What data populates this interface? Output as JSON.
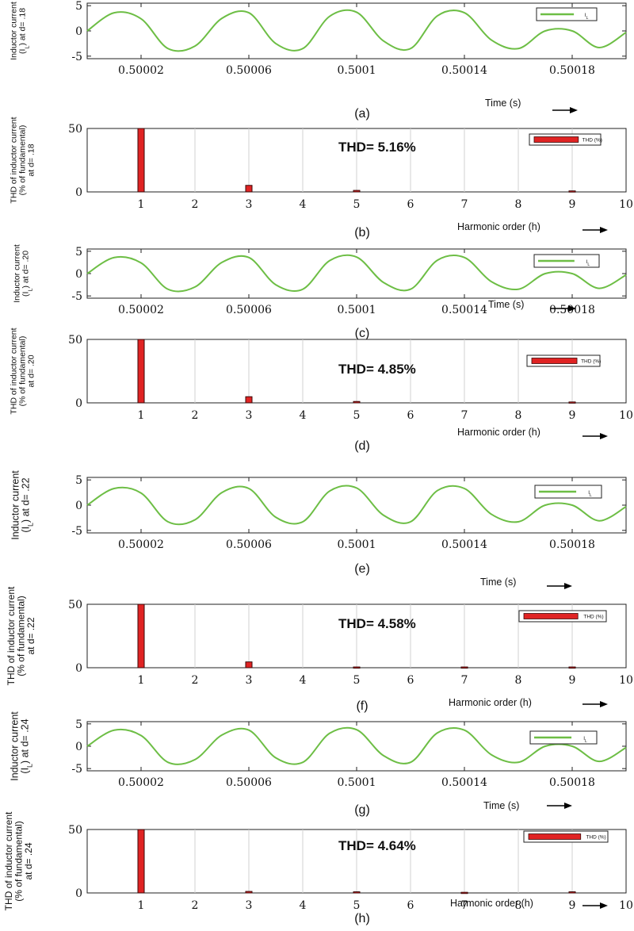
{
  "colors": {
    "line": "#6dbe45",
    "bar": "#e02323",
    "bar_edge": "#3a0a0a",
    "grid": "#d0d0d0",
    "axis": "#222222"
  },
  "panels": [
    {
      "id": "a",
      "kind": "time",
      "panel_label": "(a)",
      "ylabel": [
        "Inductor current",
        "(I",
        "L",
        ") at d= .18"
      ],
      "xlabel": "Time (s)",
      "legend": "I",
      "legend_sub": "L"
    },
    {
      "id": "b",
      "kind": "thd",
      "panel_label": "(b)",
      "ylabel": [
        "THD of inductor current",
        "(% of fundamental)",
        "at d= .18"
      ],
      "xlabel": "Harmonic order (h)",
      "annotation": "THD= 5.16%",
      "legend": "THD (%)"
    },
    {
      "id": "c",
      "kind": "time",
      "panel_label": "(c)",
      "ylabel": [
        "Inductor current",
        "(I",
        "L",
        ") at d= .20"
      ],
      "xlabel": "Time (s)",
      "legend": "I",
      "legend_sub": "L"
    },
    {
      "id": "d",
      "kind": "thd",
      "panel_label": "(d)",
      "ylabel": [
        "THD of inductor current",
        "(% of fundamental)",
        "at d= .20"
      ],
      "xlabel": "Harmonic order (h)",
      "annotation": "THD= 4.85%",
      "legend": "THD (%)"
    },
    {
      "id": "e",
      "kind": "time",
      "panel_label": "(e)",
      "ylabel": [
        "Inductor current",
        "(I",
        "L",
        ") at d= .22"
      ],
      "xlabel": "Time (s)",
      "legend": "I",
      "legend_sub": "L"
    },
    {
      "id": "f",
      "kind": "thd",
      "panel_label": "(f)",
      "ylabel": [
        "THD of inductor current",
        "(% of fundamental)",
        "at d= .22"
      ],
      "xlabel": "Harmonic order (h)",
      "annotation": "THD= 4.58%",
      "legend": "THD (%)"
    },
    {
      "id": "g",
      "kind": "time",
      "panel_label": "(g)",
      "ylabel": [
        "Inductor current",
        "(I",
        "L",
        ") at d= .24"
      ],
      "xlabel": "Time (s)",
      "legend": "I",
      "legend_sub": "L"
    },
    {
      "id": "h",
      "kind": "thd",
      "panel_label": "(h)",
      "ylabel": [
        "THD of inductor current",
        "(% of fundamental)",
        "at d= .24"
      ],
      "xlabel": "Harmonic order (h)",
      "annotation": "THD= 4.64%",
      "legend": "THD (%)"
    }
  ],
  "chart_data": [
    {
      "type": "line",
      "panel": "a",
      "x": [
        0.5,
        0.50001,
        0.50002,
        0.50003,
        0.50004,
        0.50005,
        0.50006,
        0.50007,
        0.50008,
        0.50009,
        0.5001,
        0.50011,
        0.50012,
        0.50013,
        0.50014,
        0.50015,
        0.50016,
        0.50017,
        0.50018,
        0.50019,
        0.5002
      ],
      "series": [
        {
          "values": [
            0,
            3.6,
            2.4,
            -3.5,
            -3.0,
            2.5,
            3.6,
            -2.5,
            -3.5,
            2.9,
            3.7,
            -2.0,
            -3.5,
            3.0,
            3.6,
            -1.8,
            -3.5,
            0.0,
            0.0,
            -3.3,
            -0.3
          ]
        }
      ],
      "yticks": [
        -5,
        0,
        5
      ],
      "ylim": [
        -5.5,
        5.5
      ],
      "xticks": [
        "0.50002",
        "0.50006",
        "0.5001",
        "0.50014",
        "0.50018"
      ],
      "xlim": [
        0.5,
        0.5002
      ]
    },
    {
      "type": "bar",
      "panel": "b",
      "categories": [
        1,
        2,
        3,
        4,
        5,
        6,
        7,
        8,
        9,
        10
      ],
      "values": [
        50,
        0,
        5.16,
        0,
        1.2,
        0,
        0,
        0,
        0.8,
        0
      ],
      "yticks": [
        0,
        50
      ],
      "ylim": [
        0,
        50
      ],
      "xlim": [
        0,
        10
      ]
    },
    {
      "type": "line",
      "panel": "c",
      "x": [
        0.5,
        0.50001,
        0.50002,
        0.50003,
        0.50004,
        0.50005,
        0.50006,
        0.50007,
        0.50008,
        0.50009,
        0.5001,
        0.50011,
        0.50012,
        0.50013,
        0.50014,
        0.50015,
        0.50016,
        0.50017,
        0.50018,
        0.50019,
        0.5002
      ],
      "series": [
        {
          "values": [
            0,
            3.6,
            2.4,
            -3.5,
            -3.0,
            2.5,
            3.6,
            -2.5,
            -3.5,
            2.9,
            3.7,
            -2.0,
            -3.5,
            3.0,
            3.6,
            -1.8,
            -3.5,
            0.0,
            0.0,
            -3.3,
            -0.3
          ]
        }
      ],
      "yticks": [
        -5,
        0,
        5
      ],
      "ylim": [
        -5.5,
        5.5
      ],
      "xticks": [
        "0.50002",
        "0.50006",
        "0.5001",
        "0.50014",
        "0.50018"
      ],
      "xlim": [
        0.5,
        0.5002
      ]
    },
    {
      "type": "bar",
      "panel": "d",
      "categories": [
        1,
        2,
        3,
        4,
        5,
        6,
        7,
        8,
        9,
        10
      ],
      "values": [
        50,
        0,
        4.85,
        0,
        1.1,
        0,
        0,
        0,
        0.7,
        0
      ],
      "yticks": [
        0,
        50
      ],
      "ylim": [
        0,
        50
      ],
      "xlim": [
        0,
        10
      ]
    },
    {
      "type": "line",
      "panel": "e",
      "x": [
        0.5,
        0.50001,
        0.50002,
        0.50003,
        0.50004,
        0.50005,
        0.50006,
        0.50007,
        0.50008,
        0.50009,
        0.5001,
        0.50011,
        0.50012,
        0.50013,
        0.50014,
        0.50015,
        0.50016,
        0.50017,
        0.50018,
        0.50019,
        0.5002
      ],
      "series": [
        {
          "values": [
            0,
            3.3,
            2.4,
            -3.3,
            -2.9,
            2.5,
            3.3,
            -2.4,
            -3.3,
            2.8,
            3.4,
            -2.0,
            -3.3,
            2.9,
            3.3,
            -1.8,
            -3.3,
            0.0,
            0.0,
            -3.1,
            -0.3
          ]
        }
      ],
      "yticks": [
        -5,
        0,
        5
      ],
      "ylim": [
        -5.5,
        5.5
      ],
      "xticks": [
        "0.50002",
        "0.50006",
        "0.5001",
        "0.50014",
        "0.50018"
      ],
      "xlim": [
        0.5,
        0.5002
      ]
    },
    {
      "type": "bar",
      "panel": "f",
      "categories": [
        1,
        2,
        3,
        4,
        5,
        6,
        7,
        8,
        9,
        10
      ],
      "values": [
        50,
        0,
        4.58,
        0,
        0.6,
        0,
        0.6,
        0,
        0.6,
        0
      ],
      "yticks": [
        0,
        50
      ],
      "ylim": [
        0,
        50
      ],
      "xlim": [
        0,
        10
      ]
    },
    {
      "type": "line",
      "panel": "g",
      "x": [
        0.5,
        0.50001,
        0.50002,
        0.50003,
        0.50004,
        0.50005,
        0.50006,
        0.50007,
        0.50008,
        0.50009,
        0.5001,
        0.50011,
        0.50012,
        0.50013,
        0.50014,
        0.50015,
        0.50016,
        0.50017,
        0.50018,
        0.50019,
        0.5002
      ],
      "series": [
        {
          "values": [
            0,
            3.6,
            2.4,
            -3.6,
            -3.0,
            2.5,
            3.6,
            -2.6,
            -3.6,
            2.9,
            3.7,
            -2.1,
            -3.6,
            3.0,
            3.6,
            -1.9,
            -3.6,
            0.0,
            0.0,
            -3.4,
            -0.3
          ]
        }
      ],
      "yticks": [
        -5,
        0,
        5
      ],
      "ylim": [
        -5.5,
        5.5
      ],
      "xticks": [
        "0.50002",
        "0.50006",
        "0.5001",
        "0.50014",
        "0.50018"
      ],
      "xlim": [
        0.5,
        0.5002
      ]
    },
    {
      "type": "bar",
      "panel": "h",
      "categories": [
        1,
        2,
        3,
        4,
        5,
        6,
        7,
        8,
        9,
        10
      ],
      "values": [
        50,
        0,
        1.2,
        0,
        0.9,
        0,
        0.5,
        0,
        0.9,
        0
      ],
      "yticks": [
        0,
        50
      ],
      "ylim": [
        0,
        50
      ],
      "xlim": [
        0,
        10
      ]
    }
  ]
}
